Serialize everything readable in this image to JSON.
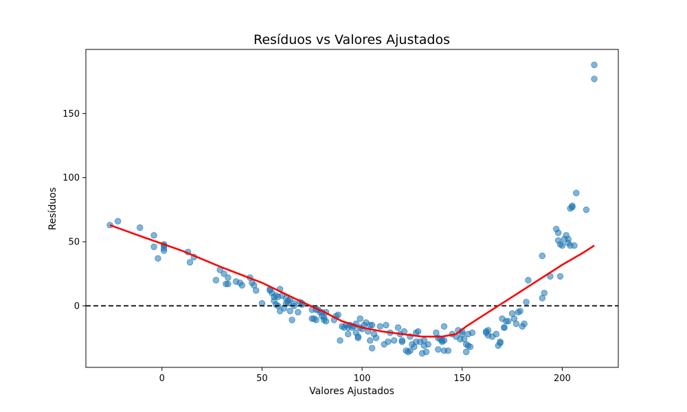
{
  "chart_data": {
    "type": "scatter",
    "title": "Resíduos vs Valores Ajustados",
    "xlabel": "Valores Ajustados",
    "ylabel": "Resíduos",
    "xlim": [
      -38,
      228
    ],
    "ylim": [
      -48,
      200
    ],
    "xticks": [
      0,
      50,
      100,
      150,
      200
    ],
    "yticks": [
      0,
      50,
      100,
      150
    ],
    "grid": false,
    "colors": {
      "points": "#1f77b4",
      "smooth": "#ff0000",
      "zero_line": "#000000"
    },
    "reference_line": {
      "y": 0,
      "style": "dashed"
    },
    "points": [
      [
        -26,
        63
      ],
      [
        -22,
        66
      ],
      [
        -11,
        61
      ],
      [
        -4,
        55
      ],
      [
        -4,
        46
      ],
      [
        -2,
        37
      ],
      [
        1,
        43
      ],
      [
        1,
        45
      ],
      [
        1,
        47
      ],
      [
        1,
        48
      ],
      [
        13,
        42
      ],
      [
        14,
        34
      ],
      [
        16,
        38
      ],
      [
        27,
        20
      ],
      [
        29,
        28
      ],
      [
        31,
        25
      ],
      [
        32,
        17
      ],
      [
        33,
        17
      ],
      [
        33,
        22
      ],
      [
        37,
        19
      ],
      [
        39,
        18
      ],
      [
        40,
        16
      ],
      [
        44,
        22
      ],
      [
        45,
        18
      ],
      [
        46,
        16
      ],
      [
        47,
        12
      ],
      [
        50,
        2
      ],
      [
        54,
        12
      ],
      [
        54,
        13
      ],
      [
        55,
        10
      ],
      [
        56,
        7
      ],
      [
        56,
        4
      ],
      [
        57,
        8
      ],
      [
        57,
        1
      ],
      [
        58,
        0
      ],
      [
        58,
        7
      ],
      [
        59,
        13
      ],
      [
        59,
        -4
      ],
      [
        60,
        8
      ],
      [
        61,
        -2
      ],
      [
        62,
        6
      ],
      [
        62,
        2
      ],
      [
        63,
        2
      ],
      [
        63,
        4
      ],
      [
        64,
        -4
      ],
      [
        64,
        5
      ],
      [
        65,
        -11
      ],
      [
        66,
        0
      ],
      [
        66,
        2
      ],
      [
        68,
        -5
      ],
      [
        69,
        3
      ],
      [
        70,
        2
      ],
      [
        70,
        1
      ],
      [
        75,
        -10
      ],
      [
        75,
        -3
      ],
      [
        76,
        -10
      ],
      [
        77,
        -11
      ],
      [
        77,
        -3
      ],
      [
        78,
        -3
      ],
      [
        79,
        -5
      ],
      [
        80,
        -8
      ],
      [
        80,
        -5
      ],
      [
        81,
        -9
      ],
      [
        81,
        -11
      ],
      [
        82,
        -12
      ],
      [
        82,
        -5
      ],
      [
        86,
        -11
      ],
      [
        87,
        -8
      ],
      [
        88,
        -7
      ],
      [
        89,
        -27
      ],
      [
        90,
        -16
      ],
      [
        91,
        -17
      ],
      [
        92,
        -15
      ],
      [
        93,
        -17
      ],
      [
        93,
        -22
      ],
      [
        94,
        -15
      ],
      [
        95,
        -17
      ],
      [
        96,
        -16
      ],
      [
        97,
        -14
      ],
      [
        97,
        -21
      ],
      [
        98,
        -25
      ],
      [
        98,
        -24
      ],
      [
        99,
        -10
      ],
      [
        99,
        -17
      ],
      [
        100,
        -18
      ],
      [
        101,
        -15
      ],
      [
        102,
        -13
      ],
      [
        103,
        -20
      ],
      [
        104,
        -15
      ],
      [
        104,
        -27
      ],
      [
        105,
        -15
      ],
      [
        105,
        -33
      ],
      [
        106,
        -22
      ],
      [
        107,
        -25
      ],
      [
        109,
        -16
      ],
      [
        111,
        -30
      ],
      [
        112,
        -15
      ],
      [
        113,
        -28
      ],
      [
        114,
        -21
      ],
      [
        116,
        -27
      ],
      [
        118,
        -17
      ],
      [
        119,
        -22
      ],
      [
        120,
        -27
      ],
      [
        120,
        -28
      ],
      [
        121,
        -20
      ],
      [
        122,
        -35
      ],
      [
        123,
        -36
      ],
      [
        124,
        -35
      ],
      [
        124,
        -24
      ],
      [
        125,
        -30
      ],
      [
        126,
        -32
      ],
      [
        127,
        -21
      ],
      [
        127,
        -28
      ],
      [
        128,
        -20
      ],
      [
        129,
        -28
      ],
      [
        130,
        -37
      ],
      [
        131,
        -31
      ],
      [
        131,
        -27
      ],
      [
        132,
        -36
      ],
      [
        133,
        -30
      ],
      [
        137,
        -21
      ],
      [
        138,
        -34
      ],
      [
        138,
        -25
      ],
      [
        139,
        -26
      ],
      [
        140,
        -27
      ],
      [
        140,
        -28
      ],
      [
        141,
        -35
      ],
      [
        141,
        -27
      ],
      [
        141,
        -16
      ],
      [
        143,
        -35
      ],
      [
        145,
        -22
      ],
      [
        147,
        -24
      ],
      [
        148,
        -19
      ],
      [
        149,
        -26
      ],
      [
        150,
        -22
      ],
      [
        150,
        -20
      ],
      [
        151,
        -26
      ],
      [
        152,
        -30
      ],
      [
        152,
        -36
      ],
      [
        153,
        -31
      ],
      [
        153,
        -22
      ],
      [
        154,
        -32
      ],
      [
        155,
        -21
      ],
      [
        162,
        -21
      ],
      [
        162,
        -20
      ],
      [
        163,
        -19
      ],
      [
        163,
        -23
      ],
      [
        165,
        -24
      ],
      [
        167,
        -22
      ],
      [
        168,
        -31
      ],
      [
        169,
        -29
      ],
      [
        169,
        -28
      ],
      [
        170,
        -10
      ],
      [
        171,
        -17
      ],
      [
        171,
        -17
      ],
      [
        172,
        -12
      ],
      [
        173,
        -12
      ],
      [
        175,
        -6
      ],
      [
        176,
        -10
      ],
      [
        177,
        -14
      ],
      [
        178,
        -5
      ],
      [
        179,
        -4
      ],
      [
        180,
        -16
      ],
      [
        181,
        -14
      ],
      [
        182,
        3
      ],
      [
        183,
        20
      ],
      [
        190,
        6
      ],
      [
        190,
        39
      ],
      [
        191,
        10
      ],
      [
        194,
        23
      ],
      [
        197,
        60
      ],
      [
        198,
        57
      ],
      [
        198,
        51
      ],
      [
        199,
        48
      ],
      [
        199,
        23
      ],
      [
        200,
        47
      ],
      [
        201,
        52
      ],
      [
        202,
        55
      ],
      [
        203,
        52
      ],
      [
        203,
        49
      ],
      [
        204,
        76
      ],
      [
        204,
        47
      ],
      [
        205,
        77
      ],
      [
        205,
        78
      ],
      [
        206,
        47
      ],
      [
        207,
        88
      ],
      [
        212,
        75
      ],
      [
        216,
        177
      ],
      [
        216,
        188
      ]
    ],
    "smooth_line": [
      [
        -26,
        63
      ],
      [
        -10,
        54
      ],
      [
        10,
        43
      ],
      [
        30,
        30
      ],
      [
        50,
        18
      ],
      [
        70,
        3
      ],
      [
        80,
        -4
      ],
      [
        90,
        -12
      ],
      [
        100,
        -17
      ],
      [
        110,
        -20
      ],
      [
        120,
        -22
      ],
      [
        130,
        -24
      ],
      [
        140,
        -24
      ],
      [
        147,
        -22
      ],
      [
        152,
        -16
      ],
      [
        160,
        -8
      ],
      [
        170,
        2
      ],
      [
        180,
        12
      ],
      [
        190,
        22
      ],
      [
        200,
        32
      ],
      [
        210,
        41
      ],
      [
        216,
        47
      ]
    ]
  }
}
